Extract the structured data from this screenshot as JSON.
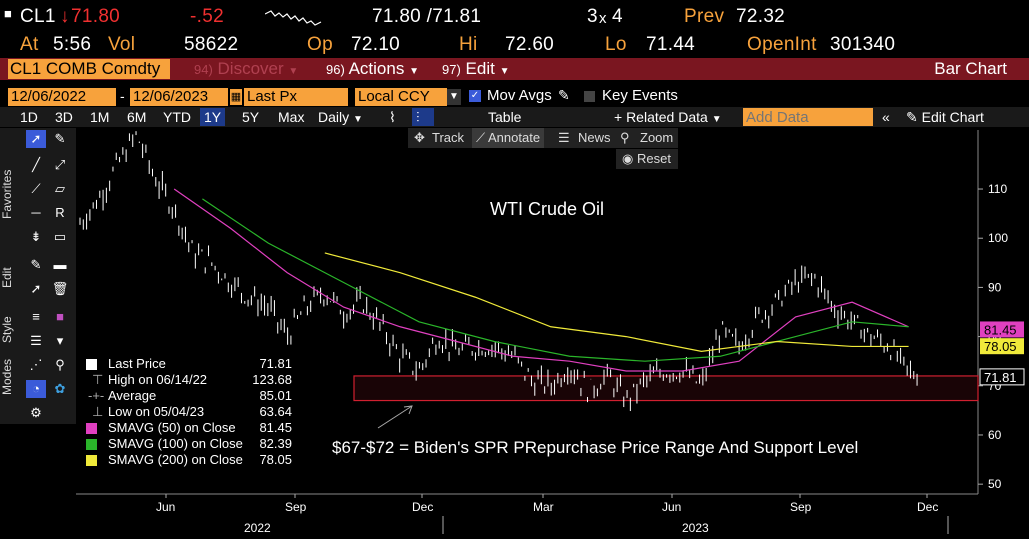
{
  "quote": {
    "ticker": "CL1",
    "arrow": "↓",
    "last": "71.80",
    "change": "-.52",
    "bid_ask": "71.80 /71.81",
    "size": "3",
    "size_x": "x",
    "size2": "4",
    "prev_label": "Prev",
    "prev": "72.32",
    "at_label": "At",
    "time": "5:56",
    "vol_label": "Vol",
    "vol": "58622",
    "op_label": "Op",
    "open": "72.10",
    "hi_label": "Hi",
    "high": "72.60",
    "lo_label": "Lo",
    "low": "71.44",
    "oi_label": "OpenInt",
    "open_int": "301340"
  },
  "menu": {
    "security": "CL1 COMB Comdty",
    "discover_num": "94)",
    "discover": "Discover",
    "actions_num": "96)",
    "actions": "Actions",
    "edit_num": "97)",
    "edit": "Edit",
    "title": "Bar Chart"
  },
  "settings": {
    "date_from": "12/06/2022",
    "date_to": "12/06/2023",
    "field": "Last Px",
    "currency": "Local CCY",
    "mov_avgs": "Mov Avgs",
    "key_events": "Key Events"
  },
  "toolbar": {
    "ranges": [
      "1D",
      "3D",
      "1M",
      "6M",
      "YTD",
      "1Y",
      "5Y",
      "Max"
    ],
    "active_range": "1Y",
    "period": "Daily",
    "table": "Table",
    "related": "+ Related Data",
    "add_data_placeholder": "Add Data",
    "edit_chart": "Edit Chart"
  },
  "chart_tools": {
    "track": "Track",
    "annotate": "Annotate",
    "news": "News",
    "zoom": "Zoom",
    "reset": "Reset"
  },
  "side_labels": {
    "favorites": "Favorites",
    "edit": "Edit",
    "style": "Style",
    "modes": "Modes"
  },
  "legend": {
    "rows": [
      {
        "label": "Last Price",
        "value": "71.81",
        "color": "#ffffff"
      },
      {
        "label": "High on 06/14/22",
        "value": "123.68",
        "color": ""
      },
      {
        "label": "Average",
        "value": "85.01",
        "color": ""
      },
      {
        "label": "Low on 05/04/23",
        "value": "63.64",
        "color": ""
      },
      {
        "label": "SMAVG (50)  on Close",
        "value": "81.45",
        "color": "#e040c0"
      },
      {
        "label": "SMAVG (100)  on Close",
        "value": "82.39",
        "color": "#2ab52a"
      },
      {
        "label": "SMAVG (200)  on Close",
        "value": "78.05",
        "color": "#f0ea3a"
      }
    ]
  },
  "annotations": {
    "title": "WTI Crude Oil",
    "support_note": "$67-$72 = Biden's SPR PRepurchase Price Range And Support Level"
  },
  "colors": {
    "orange": "#f7a23c",
    "sma50": "#e040c0",
    "sma100": "#2ab52a",
    "sma200": "#f0ea3a",
    "band": "#d02030"
  },
  "chart_data": {
    "type": "bar",
    "title": "WTI Crude Oil",
    "ylim": [
      48,
      122
    ],
    "yticks": [
      "50",
      "60",
      "70",
      "80",
      "90",
      "100",
      "110"
    ],
    "month_labels": [
      "Jun",
      "Sep",
      "Dec",
      "Mar",
      "Jun",
      "Sep",
      "Dec"
    ],
    "year_labels": [
      "2022",
      "2023"
    ],
    "price_markers": [
      {
        "label": "81.45",
        "value": 81.45,
        "color": "#e040c0"
      },
      {
        "label": "78.05",
        "value": 78.05,
        "color": "#f0ea3a"
      },
      {
        "label": "71.81",
        "value": 71.81,
        "color": "#ffffff"
      }
    ],
    "support_band": [
      67,
      72
    ],
    "series": [
      {
        "name": "Last Price",
        "points": [
          [
            0,
            103
          ],
          [
            4,
            108
          ],
          [
            8,
            115
          ],
          [
            12,
            121
          ],
          [
            16,
            112
          ],
          [
            20,
            106
          ],
          [
            24,
            97
          ],
          [
            28,
            95
          ],
          [
            32,
            91
          ],
          [
            36,
            88
          ],
          [
            40,
            86
          ],
          [
            44,
            80
          ],
          [
            48,
            86
          ],
          [
            52,
            89
          ],
          [
            56,
            85
          ],
          [
            60,
            87
          ],
          [
            64,
            82
          ],
          [
            68,
            76
          ],
          [
            72,
            73
          ],
          [
            76,
            80
          ],
          [
            80,
            77
          ],
          [
            84,
            78
          ],
          [
            88,
            78
          ],
          [
            92,
            76
          ],
          [
            96,
            71
          ],
          [
            100,
            70
          ],
          [
            104,
            74
          ],
          [
            108,
            69
          ],
          [
            112,
            72
          ],
          [
            116,
            67
          ],
          [
            120,
            71
          ],
          [
            124,
            73
          ],
          [
            128,
            73
          ],
          [
            132,
            70
          ],
          [
            136,
            81
          ],
          [
            140,
            78
          ],
          [
            144,
            84
          ],
          [
            148,
            87
          ],
          [
            152,
            91
          ],
          [
            156,
            92
          ],
          [
            160,
            86
          ],
          [
            164,
            83
          ],
          [
            168,
            80
          ],
          [
            172,
            78
          ],
          [
            174,
            75
          ],
          [
            176,
            73
          ],
          [
            178,
            72
          ]
        ]
      },
      {
        "name": "SMAVG (50)",
        "points": [
          [
            20,
            110
          ],
          [
            32,
            102
          ],
          [
            44,
            93
          ],
          [
            56,
            86
          ],
          [
            68,
            82
          ],
          [
            80,
            79
          ],
          [
            92,
            76
          ],
          [
            104,
            75
          ],
          [
            116,
            73
          ],
          [
            128,
            73
          ],
          [
            140,
            75
          ],
          [
            152,
            84
          ],
          [
            164,
            87
          ],
          [
            176,
            82
          ]
        ]
      },
      {
        "name": "SMAVG (100)",
        "points": [
          [
            26,
            108
          ],
          [
            40,
            99
          ],
          [
            56,
            91
          ],
          [
            72,
            83
          ],
          [
            88,
            79
          ],
          [
            104,
            76
          ],
          [
            120,
            75
          ],
          [
            136,
            76
          ],
          [
            152,
            80
          ],
          [
            164,
            83
          ],
          [
            176,
            82
          ]
        ]
      },
      {
        "name": "SMAVG (200)",
        "points": [
          [
            52,
            97
          ],
          [
            68,
            93
          ],
          [
            84,
            88
          ],
          [
            100,
            82
          ],
          [
            116,
            80
          ],
          [
            132,
            77
          ],
          [
            148,
            79
          ],
          [
            164,
            78
          ],
          [
            176,
            78
          ]
        ]
      }
    ]
  }
}
